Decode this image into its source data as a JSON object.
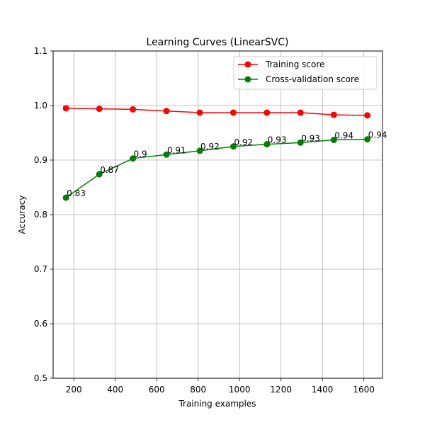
{
  "chart_data": {
    "type": "line",
    "title": "Learning Curves (LinearSVC)",
    "xlabel": "Training examples",
    "ylabel": "Accuracy",
    "xlim": [
      100,
      1690
    ],
    "ylim": [
      0.5,
      1.1
    ],
    "xticks": [
      200,
      400,
      600,
      800,
      1000,
      1200,
      1400,
      1600
    ],
    "yticks": [
      0.5,
      0.6,
      0.7,
      0.8,
      0.9,
      1.0,
      1.1
    ],
    "grid": true,
    "legend_position": "top-right",
    "x": [
      162,
      323,
      485,
      647,
      808,
      970,
      1132,
      1294,
      1455,
      1617
    ],
    "series": [
      {
        "name": "Training score",
        "color": "#ff0000",
        "values": [
          0.995,
          0.994,
          0.993,
          0.99,
          0.987,
          0.987,
          0.987,
          0.987,
          0.983,
          0.982
        ],
        "labels": []
      },
      {
        "name": "Cross-validation score",
        "color": "#008000",
        "values": [
          0.831,
          0.874,
          0.903,
          0.91,
          0.917,
          0.925,
          0.929,
          0.932,
          0.937,
          0.938
        ],
        "labels": [
          "0.83",
          "0.87",
          "0.9",
          "0.91",
          "0.92",
          "0.92",
          "0.93",
          "0.93",
          "0.94",
          "0.94"
        ]
      }
    ]
  }
}
